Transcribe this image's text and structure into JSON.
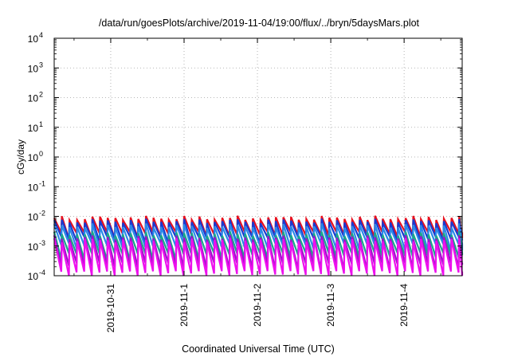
{
  "chart_data": {
    "type": "line",
    "title": "/data/run/goesPlots/archive/2019-11-04/19:00/flux/../bryn/5daysMars.plot",
    "xlabel": "Coordinated Universal Time (UTC)",
    "ylabel": "cGy/day",
    "yscale": "log",
    "ylim": [
      0.0001,
      10000
    ],
    "xlim": [
      "2019-10-30T05:30",
      "2019-11-04T19:00"
    ],
    "y_ticks": [
      {
        "base": "10",
        "exp": "-4"
      },
      {
        "base": "10",
        "exp": "-3"
      },
      {
        "base": "10",
        "exp": "-2"
      },
      {
        "base": "10",
        "exp": "-1"
      },
      {
        "base": "10",
        "exp": "0"
      },
      {
        "base": "10",
        "exp": "1"
      },
      {
        "base": "10",
        "exp": "2"
      },
      {
        "base": "10",
        "exp": "3"
      },
      {
        "base": "10",
        "exp": "4"
      }
    ],
    "x_ticks": [
      "2019-10-31",
      "2019-11-1",
      "2019-11-2",
      "2019-11-3",
      "2019-11-4"
    ],
    "grid": true,
    "legend": "none",
    "pattern": "sawtooth",
    "sawtooth_period_hours": 2.5,
    "series": [
      {
        "color": "#e8101e",
        "peak": 0.0095,
        "trough": 0.0023
      },
      {
        "color": "#1a3ad0",
        "peak": 0.0075,
        "trough": 0.0016
      },
      {
        "color": "#2a8ae8",
        "peak": 0.0052,
        "trough": 0.00095
      },
      {
        "color": "#1aa88a",
        "peak": 0.0028,
        "trough": 0.00045
      },
      {
        "color": "#9a14c8",
        "peak": 0.0021,
        "trough": 0.00021
      },
      {
        "color": "#ee10ee",
        "peak": 0.0017,
        "trough": 0.00011
      }
    ]
  }
}
